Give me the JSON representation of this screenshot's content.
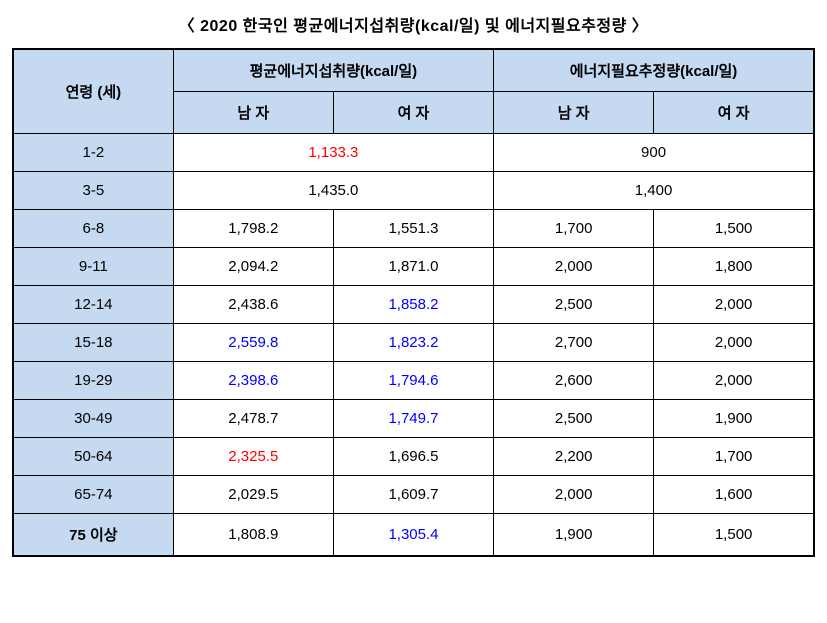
{
  "title": "〈 2020 한국인 평균에너지섭취량(kcal/일) 및 에너지필요추정량 〉",
  "headers": {
    "age": "연령 (세)",
    "intake_group": "평균에너지섭취량(kcal/일)",
    "requirement_group": "에너지필요추정량(kcal/일)",
    "male": "남 자",
    "female": "여 자"
  },
  "colors": {
    "header_bg": "#c5d9f1",
    "red": "#ff0000",
    "blue": "#0000ff",
    "border": "#000000",
    "background": "#ffffff"
  },
  "rows": [
    {
      "age": "1-2",
      "merged": true,
      "intake_merged": {
        "value": "1,133.3",
        "color": "red"
      },
      "req_merged": {
        "value": "900",
        "color": "black"
      }
    },
    {
      "age": "3-5",
      "merged": true,
      "intake_merged": {
        "value": "1,435.0",
        "color": "black"
      },
      "req_merged": {
        "value": "1,400",
        "color": "black"
      }
    },
    {
      "age": "6-8",
      "intake_m": {
        "value": "1,798.2",
        "color": "black"
      },
      "intake_f": {
        "value": "1,551.3",
        "color": "black"
      },
      "req_m": {
        "value": "1,700",
        "color": "black"
      },
      "req_f": {
        "value": "1,500",
        "color": "black"
      }
    },
    {
      "age": "9-11",
      "intake_m": {
        "value": "2,094.2",
        "color": "black"
      },
      "intake_f": {
        "value": "1,871.0",
        "color": "black"
      },
      "req_m": {
        "value": "2,000",
        "color": "black"
      },
      "req_f": {
        "value": "1,800",
        "color": "black"
      }
    },
    {
      "age": "12-14",
      "intake_m": {
        "value": "2,438.6",
        "color": "black"
      },
      "intake_f": {
        "value": "1,858.2",
        "color": "blue"
      },
      "req_m": {
        "value": "2,500",
        "color": "black"
      },
      "req_f": {
        "value": "2,000",
        "color": "black"
      }
    },
    {
      "age": "15-18",
      "intake_m": {
        "value": "2,559.8",
        "color": "blue"
      },
      "intake_f": {
        "value": "1,823.2",
        "color": "blue"
      },
      "req_m": {
        "value": "2,700",
        "color": "black"
      },
      "req_f": {
        "value": "2,000",
        "color": "black"
      }
    },
    {
      "age": "19-29",
      "intake_m": {
        "value": "2,398.6",
        "color": "blue"
      },
      "intake_f": {
        "value": "1,794.6",
        "color": "blue"
      },
      "req_m": {
        "value": "2,600",
        "color": "black"
      },
      "req_f": {
        "value": "2,000",
        "color": "black"
      }
    },
    {
      "age": "30-49",
      "intake_m": {
        "value": "2,478.7",
        "color": "black"
      },
      "intake_f": {
        "value": "1,749.7",
        "color": "blue"
      },
      "req_m": {
        "value": "2,500",
        "color": "black"
      },
      "req_f": {
        "value": "1,900",
        "color": "black"
      }
    },
    {
      "age": "50-64",
      "intake_m": {
        "value": "2,325.5",
        "color": "red"
      },
      "intake_f": {
        "value": "1,696.5",
        "color": "black"
      },
      "req_m": {
        "value": "2,200",
        "color": "black"
      },
      "req_f": {
        "value": "1,700",
        "color": "black"
      }
    },
    {
      "age": "65-74",
      "intake_m": {
        "value": "2,029.5",
        "color": "black"
      },
      "intake_f": {
        "value": "1,609.7",
        "color": "black"
      },
      "req_m": {
        "value": "2,000",
        "color": "black"
      },
      "req_f": {
        "value": "1,600",
        "color": "black"
      }
    },
    {
      "age": "75 이상",
      "age_bold": true,
      "intake_m": {
        "value": "1,808.9",
        "color": "black"
      },
      "intake_f": {
        "value": "1,305.4",
        "color": "blue"
      },
      "req_m": {
        "value": "1,900",
        "color": "black"
      },
      "req_f": {
        "value": "1,500",
        "color": "black"
      }
    }
  ]
}
